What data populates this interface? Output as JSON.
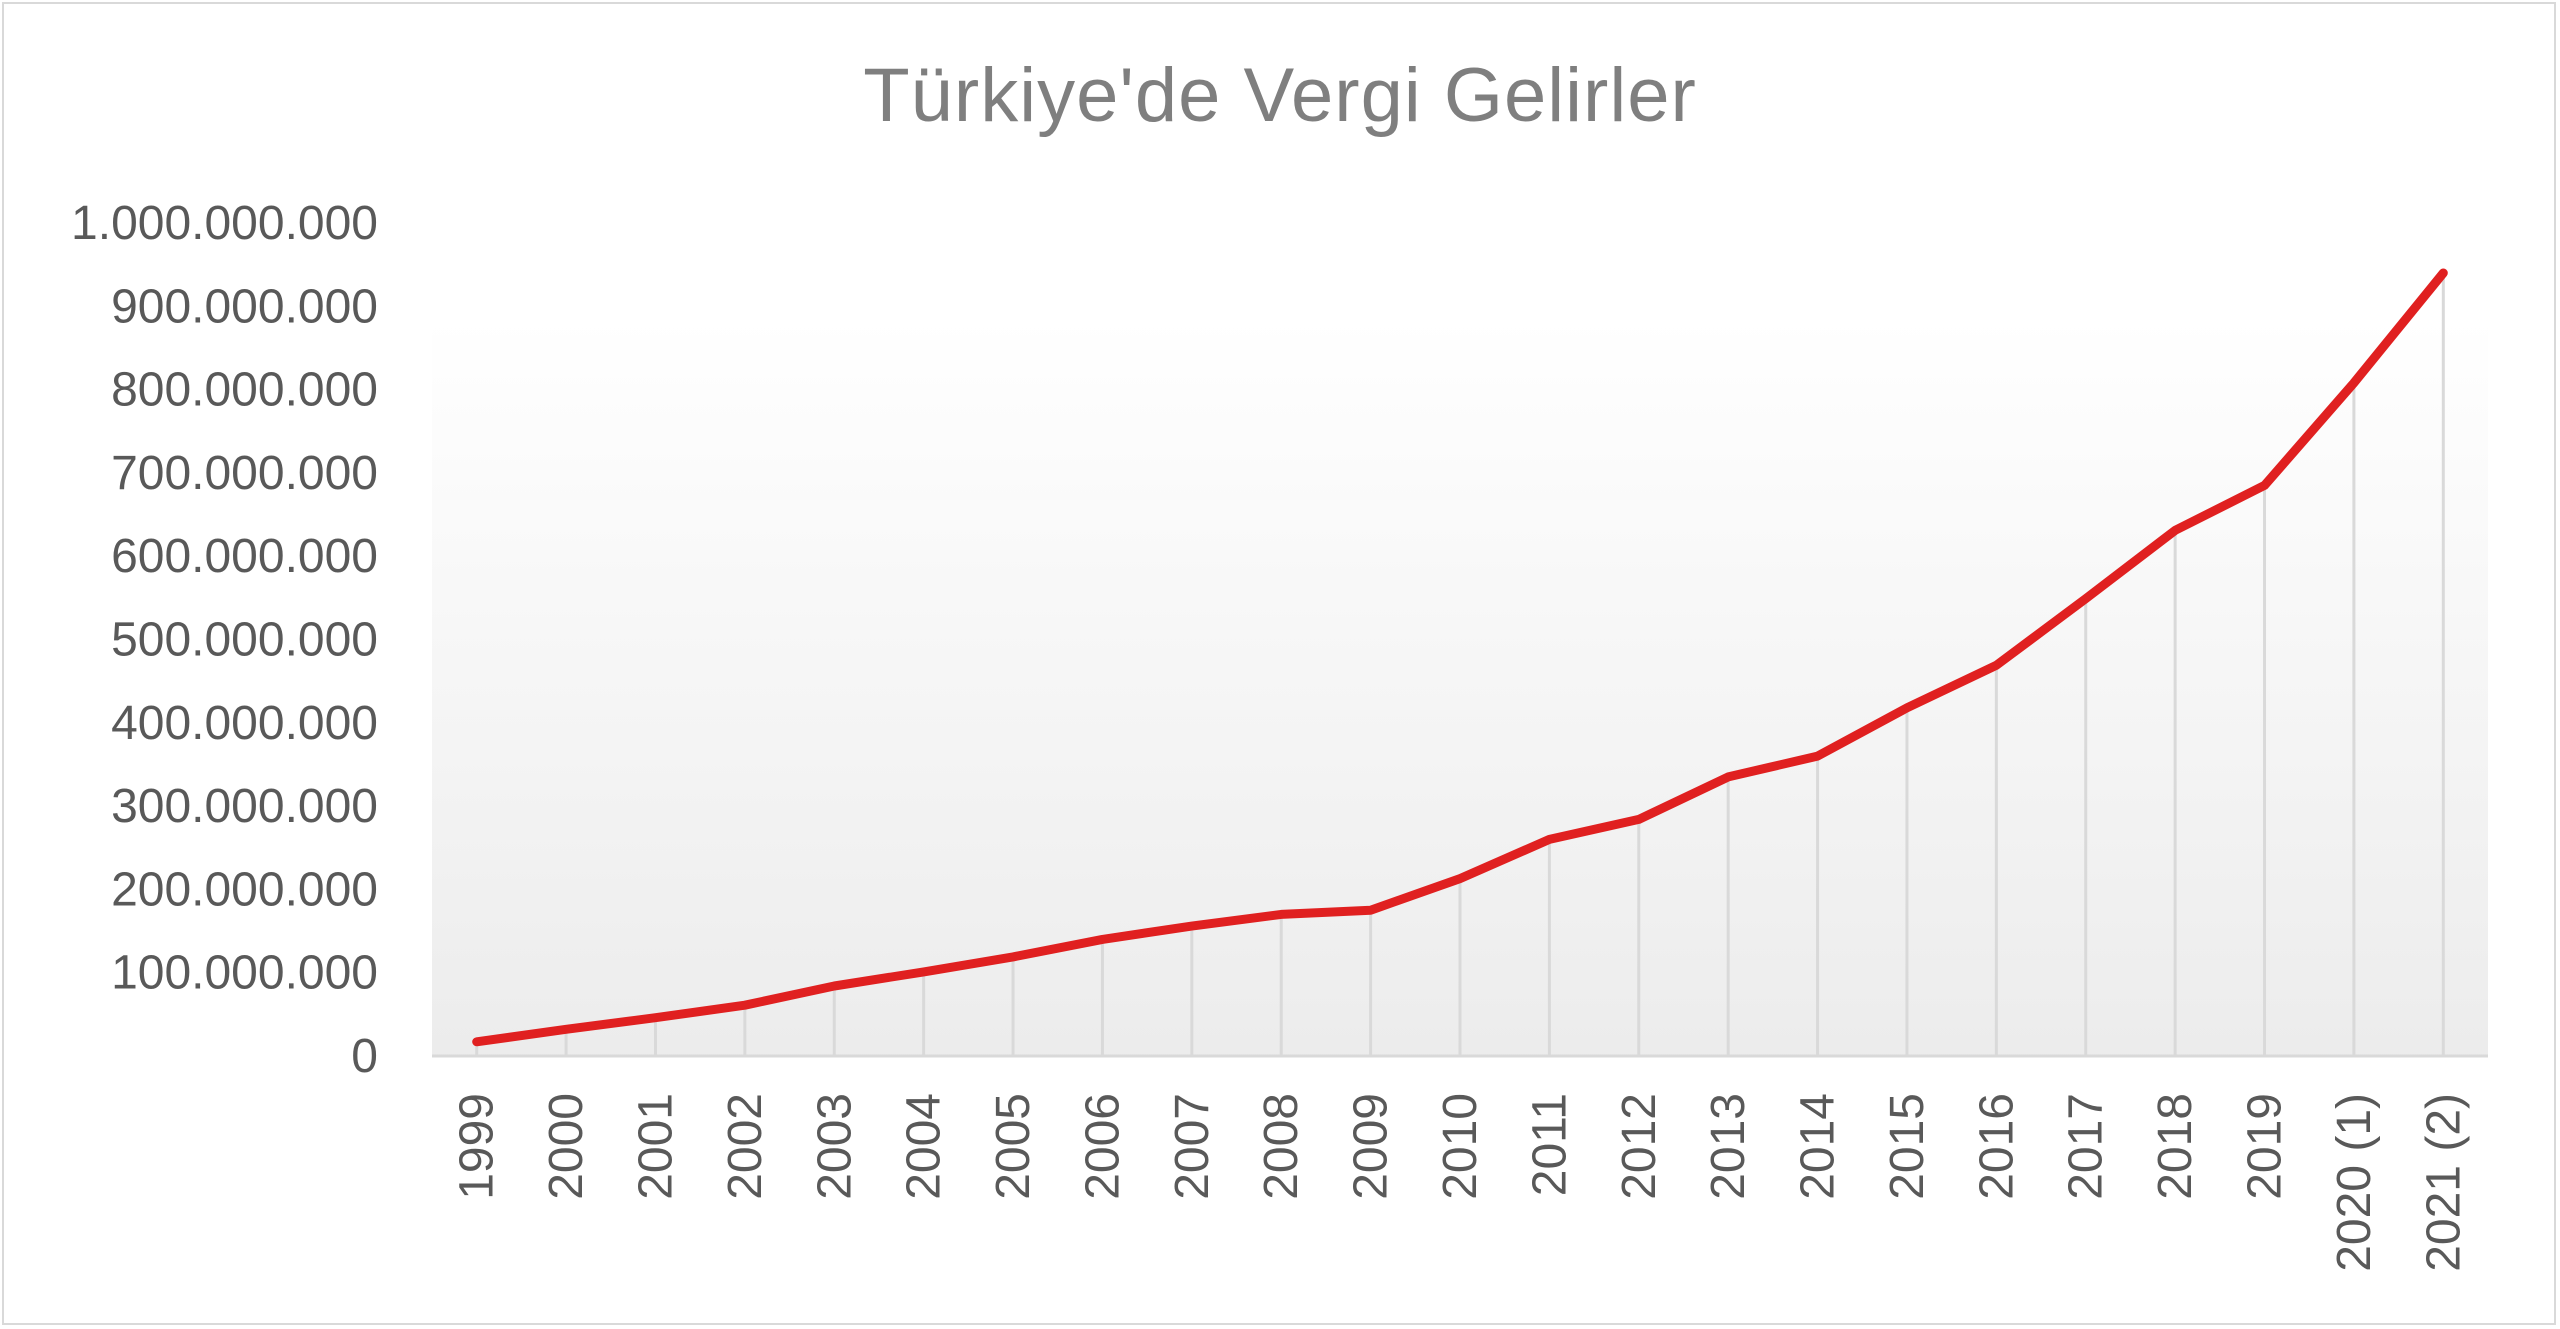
{
  "chart_data": {
    "type": "area",
    "title": "Türkiye'de Vergi Gelirler",
    "xlabel": "",
    "ylabel": "",
    "categories": [
      "1999",
      "2000",
      "2001",
      "2002",
      "2003",
      "2004",
      "2005",
      "2006",
      "2007",
      "2008",
      "2009",
      "2010",
      "2011",
      "2012",
      "2013",
      "2014",
      "2015",
      "2016",
      "2017",
      "2018",
      "2019",
      "2020 (1)",
      "2021 (2)"
    ],
    "series": [
      {
        "values": [
          17000000,
          32000000,
          46000000,
          61000000,
          84000000,
          101000000,
          119000000,
          140000000,
          156000000,
          170000000,
          175000000,
          213000000,
          260000000,
          284000000,
          335000000,
          360000000,
          418000000,
          469000000,
          549000000,
          631000000,
          685000000,
          808000000,
          940000000
        ]
      }
    ],
    "yticks": [
      "0",
      "100.000.000",
      "200.000.000",
      "300.000.000",
      "400.000.000",
      "500.000.000",
      "600.000.000",
      "700.000.000",
      "800.000.000",
      "900.000.000",
      "1.000.000.000"
    ],
    "ylim": [
      0,
      1000000000
    ],
    "grid": false,
    "colors": {
      "line": "#e02020",
      "drop_lines": "#d9d9d9",
      "axis": "#d9d9d9",
      "title": "#7f7f7f",
      "ticks": "#595959"
    }
  }
}
